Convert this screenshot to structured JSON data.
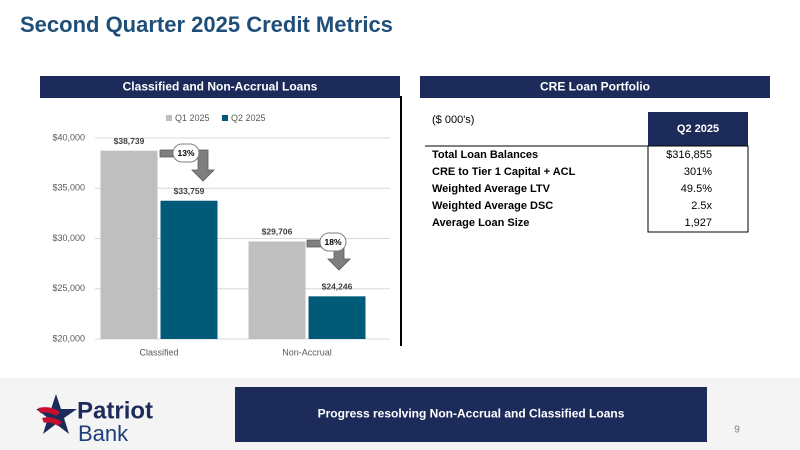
{
  "title": "Second Quarter 2025 Credit Metrics",
  "left_panel": {
    "heading": "Classified and Non-Accrual Loans"
  },
  "chart_data": {
    "type": "bar",
    "categories": [
      "Classified",
      "Non-Accrual"
    ],
    "series": [
      {
        "name": "Q1 2025",
        "color": "#bfbfbf",
        "values": [
          38739,
          29706
        ],
        "value_labels": [
          "$38,739",
          "$29,706"
        ]
      },
      {
        "name": "Q2 2025",
        "color": "#005a78",
        "values": [
          33759,
          24246
        ],
        "value_labels": [
          "$33,759",
          "$24,246"
        ]
      }
    ],
    "ylim": [
      20000,
      40000
    ],
    "yticks": [
      {
        "value": 20000,
        "label": "$20,000"
      },
      {
        "value": 25000,
        "label": "$25,000"
      },
      {
        "value": 30000,
        "label": "$30,000"
      },
      {
        "value": 35000,
        "label": "$35,000"
      },
      {
        "value": 40000,
        "label": "$40,000"
      }
    ],
    "grid": true,
    "legend": "top",
    "annotations": [
      "13%",
      "18%"
    ]
  },
  "right_panel": {
    "heading": "CRE Loan Portfolio",
    "units": "($ 000's)",
    "column": "Q2 2025",
    "rows": [
      [
        "Total Loan Balances",
        "$316,855"
      ],
      [
        "CRE to Tier 1 Capital + ACL",
        "301%"
      ],
      [
        "Weighted Average LTV",
        "49.5%"
      ],
      [
        "Weighted Average DSC",
        "2.5x"
      ],
      [
        "Average Loan Size",
        "1,927"
      ]
    ]
  },
  "footer": {
    "banner": "Progress resolving Non-Accrual and Classified Loans",
    "page": "9",
    "logo": [
      "Patriot",
      "Bank"
    ]
  }
}
